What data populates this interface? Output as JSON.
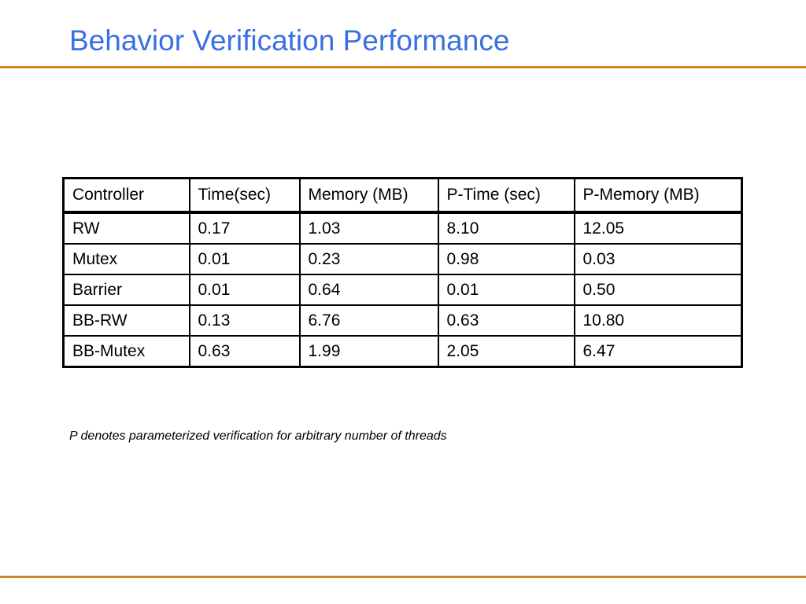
{
  "slide": {
    "title": "Behavior Verification Performance",
    "footnote": "P denotes parameterized verification for arbitrary number of threads",
    "colors": {
      "title": "#3a6fe0",
      "rule": "#d4822a"
    }
  },
  "table": {
    "headers": [
      "Controller",
      "Time(sec)",
      "Memory (MB)",
      "P-Time (sec)",
      "P-Memory (MB)"
    ],
    "rows": [
      [
        "RW",
        "0.17",
        "1.03",
        "8.10",
        "12.05"
      ],
      [
        "Mutex",
        "0.01",
        "0.23",
        "0.98",
        "0.03"
      ],
      [
        "Barrier",
        "0.01",
        "0.64",
        "0.01",
        "0.50"
      ],
      [
        "BB-RW",
        "0.13",
        "6.76",
        "0.63",
        "10.80"
      ],
      [
        "BB-Mutex",
        "0.63",
        "1.99",
        "2.05",
        "6.47"
      ]
    ]
  }
}
